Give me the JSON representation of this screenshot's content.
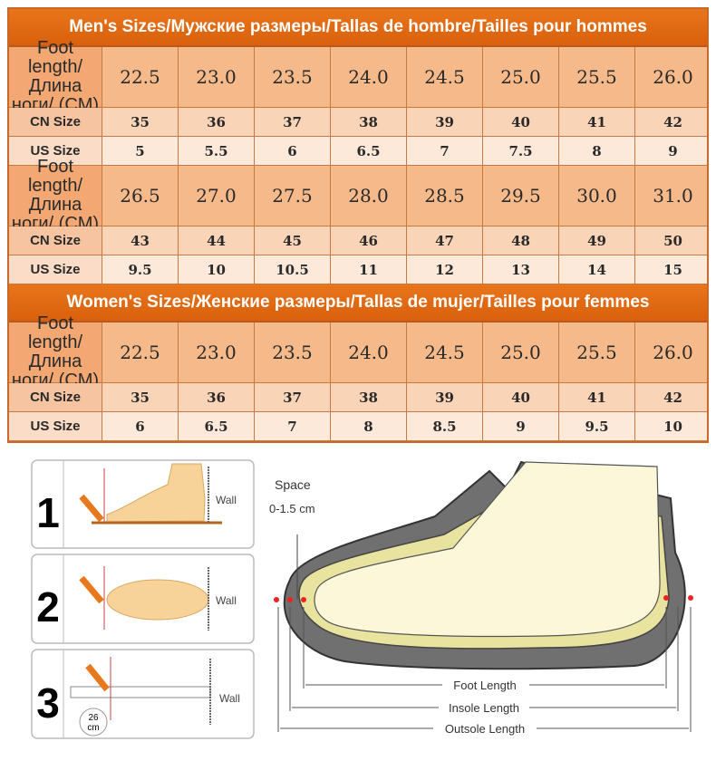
{
  "men": {
    "title": "Men's Sizes/Мужские размеры/Tallas de hombre/Tailles pour hommes",
    "row_labels": {
      "foot": "Foot length/ Длина ноги/ (CM)",
      "cn": "CN Size",
      "us": "US Size"
    },
    "blocks": [
      {
        "foot": [
          "22.5",
          "23.0",
          "23.5",
          "24.0",
          "24.5",
          "25.0",
          "25.5",
          "26.0"
        ],
        "cn": [
          "35",
          "36",
          "37",
          "38",
          "39",
          "40",
          "41",
          "42"
        ],
        "us": [
          "5",
          "5.5",
          "6",
          "6.5",
          "7",
          "7.5",
          "8",
          "9"
        ]
      },
      {
        "foot": [
          "26.5",
          "27.0",
          "27.5",
          "28.0",
          "28.5",
          "29.5",
          "30.0",
          "31.0"
        ],
        "cn": [
          "43",
          "44",
          "45",
          "46",
          "47",
          "48",
          "49",
          "50"
        ],
        "us": [
          "9.5",
          "10",
          "10.5",
          "11",
          "12",
          "13",
          "14",
          "15"
        ]
      }
    ]
  },
  "women": {
    "title": "Women's Sizes/Женские размеры/Tallas de mujer/Tailles pour femmes",
    "row_labels": {
      "foot": "Foot length/ Длина ноги/ (CM)",
      "cn": "CN Size",
      "us": "US Size"
    },
    "blocks": [
      {
        "foot": [
          "22.5",
          "23.0",
          "23.5",
          "24.0",
          "24.5",
          "25.0",
          "25.5",
          "26.0"
        ],
        "cn": [
          "35",
          "36",
          "37",
          "38",
          "39",
          "40",
          "41",
          "42"
        ],
        "us": [
          "6",
          "6.5",
          "7",
          "8",
          "8.5",
          "9",
          "9.5",
          "10"
        ]
      }
    ]
  },
  "colors": {
    "header": "#e06a10",
    "foot_row": "#f6b98a",
    "cn_row": "#f9d4b7",
    "us_row": "#fde9da"
  },
  "steps": {
    "numbers": [
      "1",
      "2",
      "3"
    ],
    "wall": "Wall",
    "ruler_value": "26",
    "ruler_unit": "cm"
  },
  "diagram": {
    "space": "Space",
    "space_range": "0-1.5 cm",
    "foot_length": "Foot Length",
    "insole_length": "Insole Length",
    "outsole_length": "Outsole Length"
  }
}
